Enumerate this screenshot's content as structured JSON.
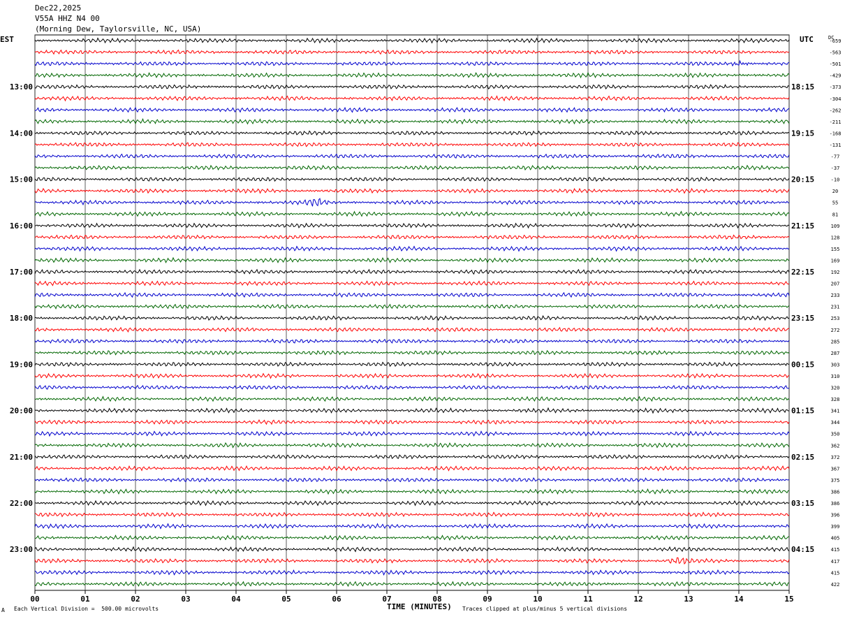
{
  "header": {
    "date": "Dec22,2025",
    "station": "V55A HHZ N4 00",
    "location": "(Morning Dew, Taylorsville, NC, USA)"
  },
  "left_axis_label": "EST",
  "right_axis_label": "UTC",
  "dc_label": "DC",
  "footer": {
    "corner_mark": "A",
    "scale_note": "Each Vertical Division =  500.00 microvolts",
    "x_title": "TIME (MINUTES)",
    "clip_note": "Traces clipped at plus/minus 5 vertical divisions"
  },
  "colors": {
    "trace_cycle": [
      "#000000",
      "#ff0000",
      "#0000cc",
      "#006600"
    ],
    "grid": "#000000",
    "background": "#ffffff"
  },
  "chart_data": {
    "type": "line",
    "title": "V55A HHZ N4 00",
    "xlabel": "TIME (MINUTES)",
    "xlim": [
      0,
      15
    ],
    "x_ticks": [
      "00",
      "01",
      "02",
      "03",
      "04",
      "05",
      "06",
      "07",
      "08",
      "09",
      "10",
      "11",
      "12",
      "13",
      "14",
      "15"
    ],
    "trace_count": 48,
    "trace_minutes": 15,
    "left_hour_labels": [
      "13:00",
      "14:00",
      "15:00",
      "16:00",
      "17:00",
      "18:00",
      "19:00",
      "20:00",
      "21:00",
      "22:00",
      "23:00"
    ],
    "right_hour_labels": [
      "18:15",
      "19:15",
      "20:15",
      "21:15",
      "22:15",
      "23:15",
      "00:15",
      "01:15",
      "02:15",
      "03:15",
      "04:15"
    ],
    "hour_label_first_trace": 4,
    "traces_per_hour": 4,
    "dc_offsets": [
      "-659",
      "-563",
      "-501",
      "-429",
      "-373",
      "-304",
      "-262",
      "-211",
      "-168",
      "-131",
      "-77",
      "-37",
      "-10",
      "20",
      "55",
      "81",
      "109",
      "128",
      "155",
      "169",
      "192",
      "207",
      "233",
      "231",
      "253",
      "272",
      "285",
      "287",
      "303",
      "310",
      "320",
      "328",
      "341",
      "344",
      "350",
      "362",
      "372",
      "367",
      "375",
      "386",
      "386",
      "396",
      "399",
      "405",
      "415",
      "417",
      "415",
      "422"
    ],
    "events": [
      {
        "trace": 2,
        "minute": 14.0,
        "note": "burst"
      },
      {
        "trace": 14,
        "minute": 5.6,
        "note": "burst"
      },
      {
        "trace": 45,
        "minute": 12.8,
        "note": "burst"
      }
    ]
  }
}
